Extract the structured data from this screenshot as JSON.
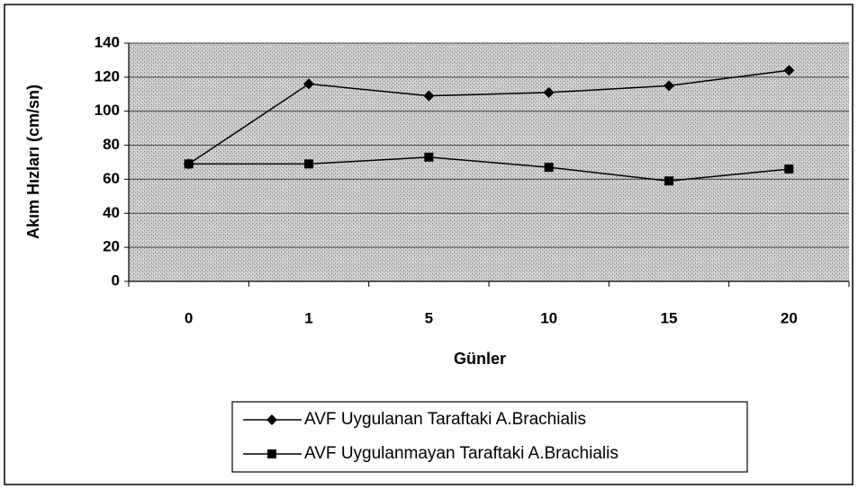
{
  "chart_data": {
    "type": "line",
    "categories": [
      "0",
      "1",
      "5",
      "10",
      "15",
      "20"
    ],
    "series": [
      {
        "name": "AVF Uygulanan Taraftaki A.Brachialis",
        "color": "#000000",
        "marker": "diamond",
        "values": [
          69,
          116,
          109,
          111,
          115,
          124
        ]
      },
      {
        "name": "AVF Uygulanmayan Taraftaki A.Brachialis",
        "color": "#000000",
        "marker": "square",
        "values": [
          69,
          69,
          73,
          67,
          59,
          66
        ]
      }
    ],
    "x_label": "Günler",
    "y_label": "Akım Hızları (cm/sn)",
    "ylim": [
      0,
      140
    ],
    "yticks": [
      0,
      20,
      40,
      60,
      80,
      100,
      120,
      140
    ],
    "grid": true,
    "legend": "bottom"
  }
}
